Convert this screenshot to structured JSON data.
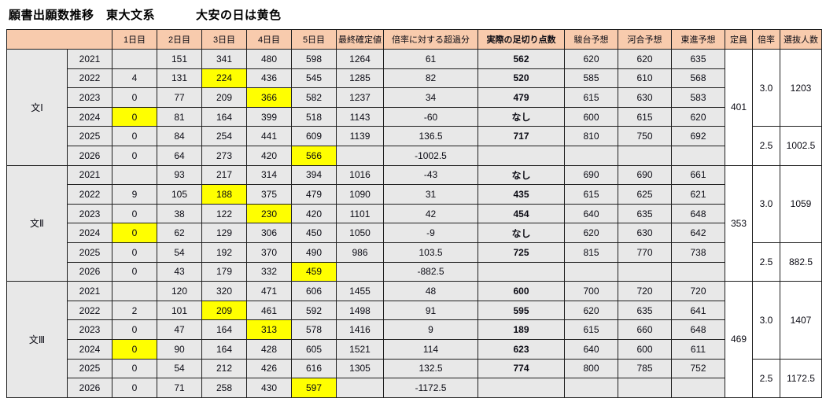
{
  "title": {
    "main": "願書出願数推移　東大文系",
    "note": "大安の日は黄色"
  },
  "colors": {
    "header_bg": "#F8CBAD",
    "cell_bg": "#E8E8E8",
    "plain_bg": "#FFFFFF",
    "highlight": "#FFFF00",
    "border": "#1f1f1f",
    "text": "#0b0b14"
  },
  "chart_data": {
    "type": "table",
    "title": "願書出願数推移　東大文系",
    "legend_note": "大安の日は黄色 (yellow = lucky day cells)",
    "headers": [
      "1日目",
      "2日目",
      "3日目",
      "4日目",
      "5日目",
      "最終確定値",
      "倍率に対する超過分",
      "実際の足切り点数",
      "駿台予想",
      "河合予想",
      "東進予想",
      "定員",
      "倍率",
      "選抜人数"
    ],
    "bold_column_index": 7,
    "blocks": [
      {
        "group": "文Ⅰ",
        "capacity": "401",
        "ratio_groups": [
          {
            "ratio": "3.0",
            "selected": "1203",
            "span": 4
          },
          {
            "ratio": "2.5",
            "selected": "1002.5",
            "span": 2
          }
        ],
        "rows": [
          {
            "year": "2021",
            "values": [
              "",
              "151",
              "341",
              "480",
              "598",
              "1264",
              "61",
              "562",
              "620",
              "620",
              "635"
            ],
            "highlight": null
          },
          {
            "year": "2022",
            "values": [
              "4",
              "131",
              "224",
              "436",
              "545",
              "1285",
              "82",
              "520",
              "585",
              "610",
              "568"
            ],
            "highlight": 2
          },
          {
            "year": "2023",
            "values": [
              "0",
              "77",
              "209",
              "366",
              "582",
              "1237",
              "34",
              "479",
              "615",
              "630",
              "583"
            ],
            "highlight": 3
          },
          {
            "year": "2024",
            "values": [
              "0",
              "81",
              "164",
              "399",
              "518",
              "1143",
              "-60",
              "なし",
              "600",
              "615",
              "620"
            ],
            "highlight": 0
          },
          {
            "year": "2025",
            "values": [
              "0",
              "84",
              "254",
              "441",
              "609",
              "1139",
              "136.5",
              "717",
              "810",
              "750",
              "692"
            ],
            "highlight": null
          },
          {
            "year": "2026",
            "values": [
              "0",
              "64",
              "273",
              "420",
              "566",
              "",
              "-1002.5",
              "",
              "",
              "",
              ""
            ],
            "highlight": 4
          }
        ]
      },
      {
        "group": "文Ⅱ",
        "capacity": "353",
        "ratio_groups": [
          {
            "ratio": "3.0",
            "selected": "1059",
            "span": 4
          },
          {
            "ratio": "2.5",
            "selected": "882.5",
            "span": 2
          }
        ],
        "rows": [
          {
            "year": "2021",
            "values": [
              "",
              "93",
              "217",
              "314",
              "394",
              "1016",
              "-43",
              "なし",
              "690",
              "690",
              "661"
            ],
            "highlight": null
          },
          {
            "year": "2022",
            "values": [
              "9",
              "105",
              "188",
              "375",
              "479",
              "1090",
              "31",
              "435",
              "615",
              "625",
              "621"
            ],
            "highlight": 2
          },
          {
            "year": "2023",
            "values": [
              "0",
              "38",
              "122",
              "230",
              "420",
              "1101",
              "42",
              "454",
              "640",
              "635",
              "648"
            ],
            "highlight": 3
          },
          {
            "year": "2024",
            "values": [
              "0",
              "62",
              "129",
              "306",
              "450",
              "1050",
              "-9",
              "なし",
              "620",
              "630",
              "642"
            ],
            "highlight": 0
          },
          {
            "year": "2025",
            "values": [
              "0",
              "54",
              "192",
              "370",
              "490",
              "986",
              "103.5",
              "725",
              "815",
              "770",
              "738"
            ],
            "highlight": null
          },
          {
            "year": "2026",
            "values": [
              "0",
              "43",
              "179",
              "332",
              "459",
              "",
              "-882.5",
              "",
              "",
              "",
              ""
            ],
            "highlight": 4
          }
        ]
      },
      {
        "group": "文Ⅲ",
        "capacity": "469",
        "ratio_groups": [
          {
            "ratio": "3.0",
            "selected": "1407",
            "span": 4
          },
          {
            "ratio": "2.5",
            "selected": "1172.5",
            "span": 2
          }
        ],
        "rows": [
          {
            "year": "2021",
            "values": [
              "",
              "120",
              "320",
              "471",
              "606",
              "1455",
              "48",
              "600",
              "700",
              "720",
              "720"
            ],
            "highlight": null
          },
          {
            "year": "2022",
            "values": [
              "2",
              "101",
              "209",
              "461",
              "592",
              "1498",
              "91",
              "595",
              "620",
              "635",
              "641"
            ],
            "highlight": 2
          },
          {
            "year": "2023",
            "values": [
              "0",
              "47",
              "164",
              "313",
              "578",
              "1416",
              "9",
              "189",
              "615",
              "660",
              "648"
            ],
            "highlight": 3
          },
          {
            "year": "2024",
            "values": [
              "0",
              "90",
              "164",
              "428",
              "605",
              "1521",
              "114",
              "623",
              "640",
              "600",
              "611"
            ],
            "highlight": 0
          },
          {
            "year": "2025",
            "values": [
              "0",
              "54",
              "212",
              "426",
              "616",
              "1305",
              "132.5",
              "774",
              "800",
              "785",
              "752"
            ],
            "highlight": null
          },
          {
            "year": "2026",
            "values": [
              "0",
              "71",
              "258",
              "430",
              "597",
              "",
              "-1172.5",
              "",
              "",
              "",
              ""
            ],
            "highlight": 4
          }
        ]
      }
    ]
  }
}
